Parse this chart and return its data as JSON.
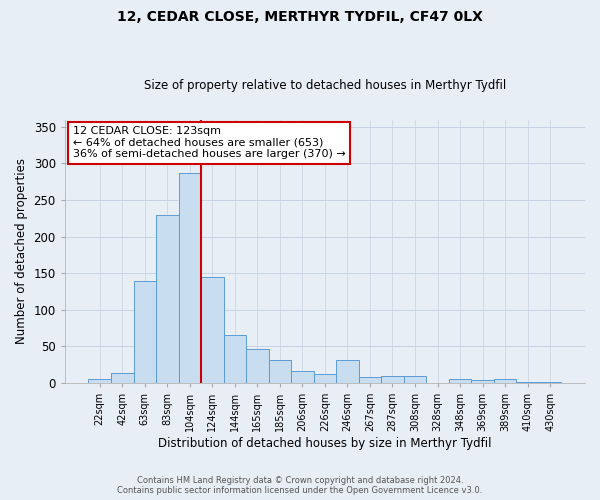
{
  "title": "12, CEDAR CLOSE, MERTHYR TYDFIL, CF47 0LX",
  "subtitle": "Size of property relative to detached houses in Merthyr Tydfil",
  "xlabel": "Distribution of detached houses by size in Merthyr Tydfil",
  "ylabel": "Number of detached properties",
  "bar_labels": [
    "22sqm",
    "42sqm",
    "63sqm",
    "83sqm",
    "104sqm",
    "124sqm",
    "144sqm",
    "165sqm",
    "185sqm",
    "206sqm",
    "226sqm",
    "246sqm",
    "267sqm",
    "287sqm",
    "308sqm",
    "328sqm",
    "348sqm",
    "369sqm",
    "389sqm",
    "410sqm",
    "430sqm"
  ],
  "bar_values": [
    5,
    14,
    140,
    230,
    287,
    145,
    66,
    47,
    31,
    17,
    12,
    31,
    8,
    9,
    9,
    0,
    5,
    4,
    5,
    2,
    2
  ],
  "bar_color": "#c9ddf0",
  "bar_edge_color": "#5b9bd5",
  "vline_color": "#cc0000",
  "annotation_title": "12 CEDAR CLOSE: 123sqm",
  "annotation_line1": "← 64% of detached houses are smaller (653)",
  "annotation_line2": "36% of semi-detached houses are larger (370) →",
  "annotation_box_color": "#ffffff",
  "annotation_box_edge": "#cc0000",
  "ylim": [
    0,
    360
  ],
  "yticks": [
    0,
    50,
    100,
    150,
    200,
    250,
    300,
    350
  ],
  "background_color": "#e8eef5",
  "footer_line1": "Contains HM Land Registry data © Crown copyright and database right 2024.",
  "footer_line2": "Contains public sector information licensed under the Open Government Licence v3.0."
}
